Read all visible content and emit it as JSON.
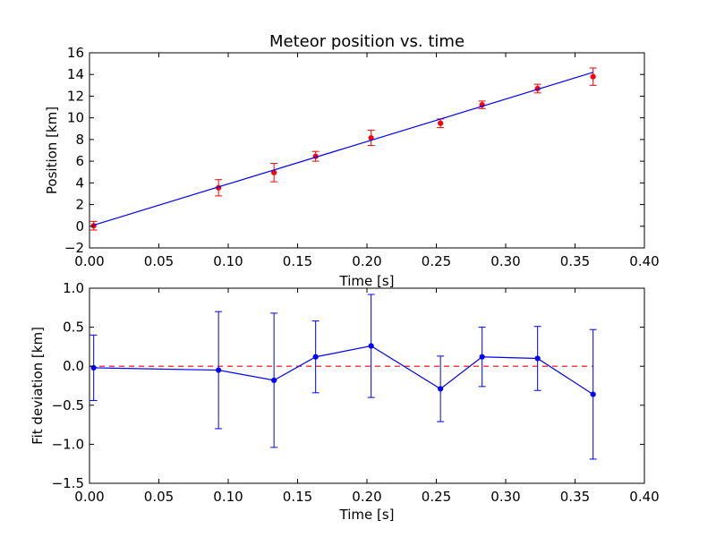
{
  "chart_data": [
    {
      "type": "scatter",
      "title": "Meteor position vs. time",
      "xlabel": "Time [s]",
      "ylabel": "Position [km]",
      "xlim": [
        0.0,
        0.4
      ],
      "ylim": [
        -2,
        16
      ],
      "x_ticks": [
        "0.00",
        "0.05",
        "0.10",
        "0.15",
        "0.20",
        "0.25",
        "0.30",
        "0.35",
        "0.40"
      ],
      "y_ticks": [
        "−2",
        "0",
        "2",
        "4",
        "6",
        "8",
        "10",
        "12",
        "14",
        "16"
      ],
      "grid": false,
      "series": [
        {
          "kind": "points-with-error",
          "color": "#ff0000",
          "x": [
            0.003,
            0.093,
            0.133,
            0.163,
            0.203,
            0.253,
            0.283,
            0.323,
            0.363
          ],
          "y": [
            0.05,
            3.55,
            4.95,
            6.45,
            8.15,
            9.5,
            11.2,
            12.7,
            13.8
          ],
          "yerr": [
            0.4,
            0.75,
            0.85,
            0.45,
            0.7,
            0.4,
            0.35,
            0.4,
            0.8
          ]
        },
        {
          "kind": "fit-line",
          "color": "#0000ff",
          "x": [
            0.003,
            0.363
          ],
          "y": [
            0.1,
            14.2
          ]
        }
      ]
    },
    {
      "type": "line",
      "title": "",
      "xlabel": "Time [s]",
      "ylabel": "Fit deviation [km]",
      "xlim": [
        0.0,
        0.4
      ],
      "ylim": [
        -1.5,
        1.0
      ],
      "x_ticks": [
        "0.00",
        "0.05",
        "0.10",
        "0.15",
        "0.20",
        "0.25",
        "0.30",
        "0.35",
        "0.40"
      ],
      "y_ticks": [
        "−1.5",
        "−1.0",
        "−0.5",
        "0.0",
        "0.5",
        "1.0"
      ],
      "grid": false,
      "zero_line": {
        "color": "#ff0000",
        "style": "dashed",
        "x": [
          0.0,
          0.363
        ]
      },
      "series": [
        {
          "kind": "line-with-error",
          "color": "#0000ff",
          "x": [
            0.003,
            0.093,
            0.133,
            0.163,
            0.203,
            0.253,
            0.283,
            0.323,
            0.363
          ],
          "y": [
            -0.02,
            -0.05,
            -0.18,
            0.12,
            0.26,
            -0.29,
            0.12,
            0.1,
            -0.36
          ],
          "yerr": [
            0.42,
            0.75,
            0.86,
            0.46,
            0.66,
            0.42,
            0.38,
            0.41,
            0.83
          ]
        }
      ]
    }
  ]
}
